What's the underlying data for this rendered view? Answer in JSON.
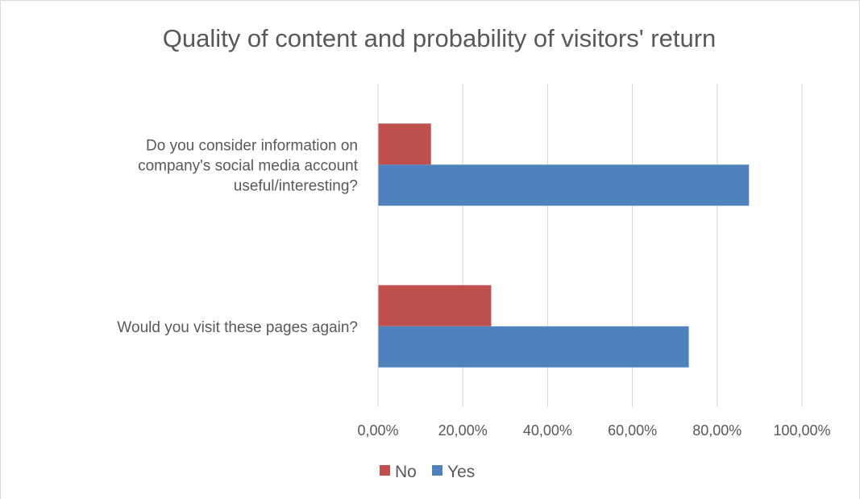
{
  "chart_data": {
    "type": "bar",
    "orientation": "horizontal",
    "title": "Quality of content and probability of visitors' return",
    "categories": [
      [
        "Do you consider information on",
        "company's social media account",
        "useful/interesting?"
      ],
      [
        "Would you visit these pages again?"
      ]
    ],
    "series": [
      {
        "name": "No",
        "color": "#c0504d",
        "values": [
          12.5,
          26.7
        ]
      },
      {
        "name": "Yes",
        "color": "#4f81bd",
        "values": [
          87.5,
          73.3
        ]
      }
    ],
    "xlim": [
      0,
      100
    ],
    "ticks": [
      0,
      20,
      40,
      60,
      80,
      100
    ],
    "tick_labels": [
      "0,00%",
      "20,00%",
      "40,00%",
      "60,00%",
      "80,00%",
      "100,00%"
    ],
    "xlabel": "",
    "ylabel": "",
    "grid": true,
    "legend_position": "bottom"
  }
}
